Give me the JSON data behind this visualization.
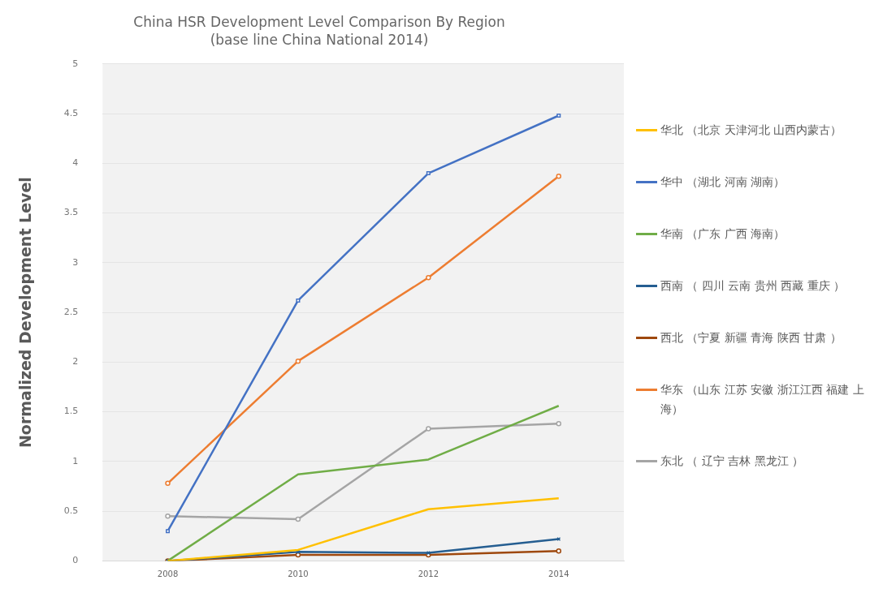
{
  "chart_data": {
    "type": "line",
    "title": "China HSR Development Level Comparison By Region",
    "subtitle": "(base line China National 2014)",
    "ylabel": "Normalized Development Level",
    "categories": [
      "2008",
      "2010",
      "2012",
      "2014"
    ],
    "ylim": [
      0,
      5
    ],
    "yticks": [
      0,
      0.5,
      1,
      1.5,
      2,
      2.5,
      3,
      3.5,
      4,
      4.5,
      5
    ],
    "grid": "y",
    "legend": "right",
    "series": [
      {
        "name": "华北 （北京 天津河北 山西内蒙古）",
        "color": "#ffc000",
        "marker": "none",
        "values": [
          0,
          0.11,
          0.52,
          0.63
        ]
      },
      {
        "name": "华中 （湖北 河南 湖南）",
        "color": "#4472c4",
        "marker": "square",
        "values": [
          0.3,
          2.62,
          3.9,
          4.48
        ]
      },
      {
        "name": "华南 （广东 广西 海南）",
        "color": "#70ad47",
        "marker": "none",
        "values": [
          0,
          0.87,
          1.02,
          1.56
        ]
      },
      {
        "name": "西南 （ 四川 云南 贵州 西藏 重庆 ）",
        "color": "#255e91",
        "marker": "cross",
        "values": [
          0,
          0.09,
          0.08,
          0.22
        ]
      },
      {
        "name": "西北 （宁夏 新疆 青海 陕西 甘肃 ）",
        "color": "#9e480e",
        "marker": "circle",
        "values": [
          0,
          0.06,
          0.06,
          0.1
        ]
      },
      {
        "name": "华东 （山东 江苏 安徽 浙江江西 福建 上海）",
        "color": "#ed7d31",
        "marker": "circle",
        "values": [
          0.78,
          2.01,
          2.85,
          3.87
        ]
      },
      {
        "name": "东北 （ 辽宁 吉林 黑龙江 ）",
        "color": "#a5a5a5",
        "marker": "circle",
        "values": [
          0.45,
          0.42,
          1.33,
          1.38
        ]
      }
    ]
  }
}
